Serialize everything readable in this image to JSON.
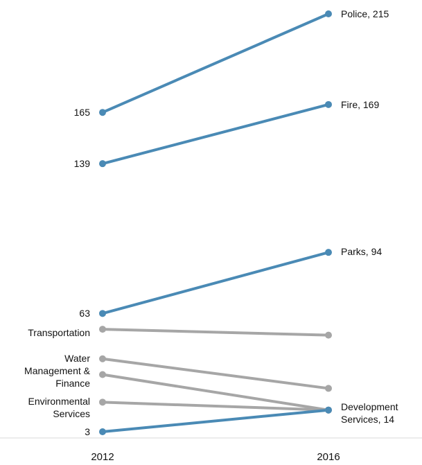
{
  "chart_data": {
    "type": "line",
    "subtype": "slope",
    "x": [
      "2012",
      "2016"
    ],
    "colors": {
      "highlight": "#4a8ab5",
      "muted": "#a6a6a6",
      "baseline": "#d9d9d9"
    },
    "series": [
      {
        "name": "Police",
        "values": [
          165,
          215
        ],
        "highlight": true,
        "left_label": "165",
        "right_label": "Police,  215"
      },
      {
        "name": "Fire",
        "values": [
          139,
          169
        ],
        "highlight": true,
        "left_label": "139",
        "right_label": "Fire,  169"
      },
      {
        "name": "Parks",
        "values": [
          63,
          94
        ],
        "highlight": true,
        "left_label": "63",
        "right_label": "Parks,  94"
      },
      {
        "name": "Transportation",
        "values": [
          55,
          52
        ],
        "highlight": false,
        "left_label": "Transportation",
        "right_label": ""
      },
      {
        "name": "Water",
        "values": [
          40,
          25
        ],
        "highlight": false,
        "left_label": "Water",
        "right_label": ""
      },
      {
        "name": "Management & Finance",
        "values": [
          32,
          14
        ],
        "highlight": false,
        "left_label": "Management & Finance",
        "right_label": ""
      },
      {
        "name": "Environmental Services",
        "values": [
          18,
          14
        ],
        "highlight": false,
        "left_label": "Environmental Services",
        "right_label": ""
      },
      {
        "name": "Development Services",
        "values": [
          3,
          14
        ],
        "highlight": true,
        "left_label": "3",
        "right_label": "Development Services,  14"
      }
    ],
    "left_labels": [
      {
        "series": "Police",
        "lines": [
          "165"
        ]
      },
      {
        "series": "Fire",
        "lines": [
          "139"
        ]
      },
      {
        "series": "Parks",
        "lines": [
          "63"
        ]
      },
      {
        "series": "Transportation",
        "lines": [
          "Transportation"
        ]
      },
      {
        "series": "Water",
        "lines": [
          "Water"
        ]
      },
      {
        "series": "Management & Finance",
        "lines": [
          "Management &",
          "Finance"
        ]
      },
      {
        "series": "Environmental Services",
        "lines": [
          "Environmental",
          "Services"
        ]
      },
      {
        "series": "Development Services",
        "lines": [
          "3"
        ]
      }
    ],
    "right_labels": [
      {
        "series": "Police",
        "lines": [
          "Police,  215"
        ]
      },
      {
        "series": "Fire",
        "lines": [
          "Fire,  169"
        ]
      },
      {
        "series": "Parks",
        "lines": [
          "Parks,  94"
        ]
      },
      {
        "series": "Development Services",
        "lines": [
          "Development",
          "Services,  14"
        ]
      }
    ],
    "ylim": [
      0,
      215
    ],
    "grid": false,
    "legend": "none"
  }
}
